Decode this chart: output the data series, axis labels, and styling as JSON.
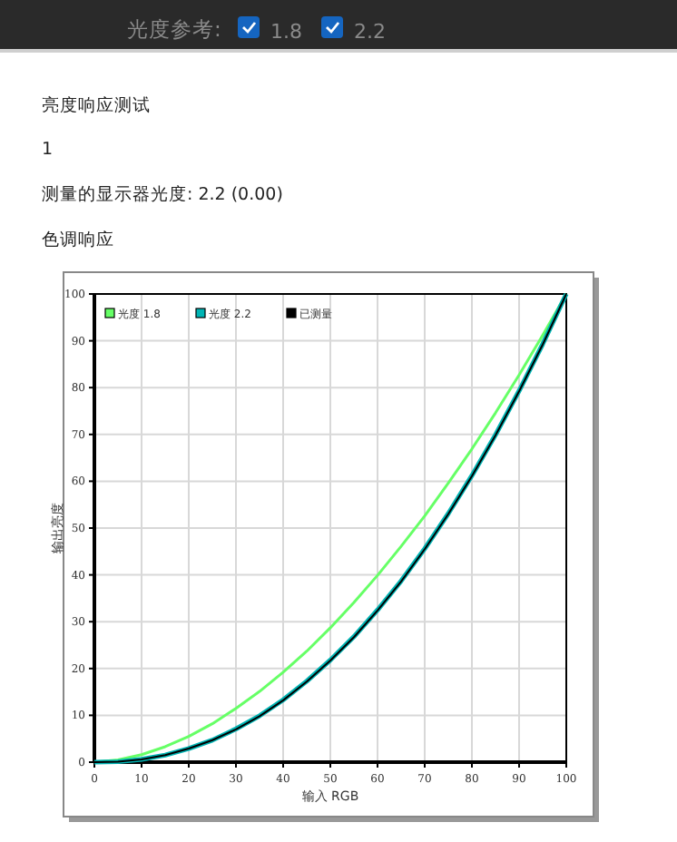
{
  "chart_data": {
    "type": "line",
    "title": "亮度响应测试",
    "subtitle": "色调响应",
    "annotations": [
      "光度参考:",
      "1.8",
      "2.2",
      "1",
      "测量的显示器光度: 2.2 (0.00)"
    ],
    "xlabel": "输入 RGB",
    "ylabel": "输出亮度",
    "x": [
      0,
      5,
      10,
      15,
      20,
      25,
      30,
      35,
      40,
      45,
      50,
      55,
      60,
      65,
      70,
      75,
      80,
      85,
      90,
      95,
      100
    ],
    "series": [
      {
        "name": "光度 1.8",
        "color": "#66ff66",
        "values": [
          0,
          0.5,
          1.6,
          3.3,
          5.5,
          8.2,
          11.5,
          15.1,
          19.2,
          23.7,
          28.7,
          34.1,
          39.9,
          46.1,
          52.6,
          59.6,
          66.9,
          74.6,
          82.7,
          91.2,
          100
        ]
      },
      {
        "name": "光度 2.2",
        "color": "#00b4b4",
        "values": [
          0,
          0.1,
          0.6,
          1.5,
          2.9,
          4.7,
          7.1,
          9.9,
          13.3,
          17.3,
          21.8,
          26.8,
          32.5,
          38.7,
          45.6,
          53.1,
          61.2,
          69.9,
          79.3,
          89.3,
          100
        ]
      },
      {
        "name": "已测量",
        "color": "#000000",
        "values": [
          0,
          0.1,
          0.6,
          1.5,
          2.9,
          4.7,
          7.0,
          9.8,
          13.2,
          17.2,
          21.7,
          26.7,
          32.4,
          38.6,
          45.5,
          53.0,
          61.1,
          69.8,
          79.2,
          89.2,
          100
        ]
      }
    ],
    "xlim": [
      0,
      100
    ],
    "ylim": [
      0,
      100
    ],
    "xticks": [
      0,
      10,
      20,
      30,
      40,
      50,
      60,
      70,
      80,
      90,
      100
    ],
    "yticks": [
      0,
      10,
      20,
      30,
      40,
      50,
      60,
      70,
      80,
      90,
      100
    ],
    "grid": true,
    "legend": "top left",
    "marker": "none",
    "line_style": "solid"
  }
}
